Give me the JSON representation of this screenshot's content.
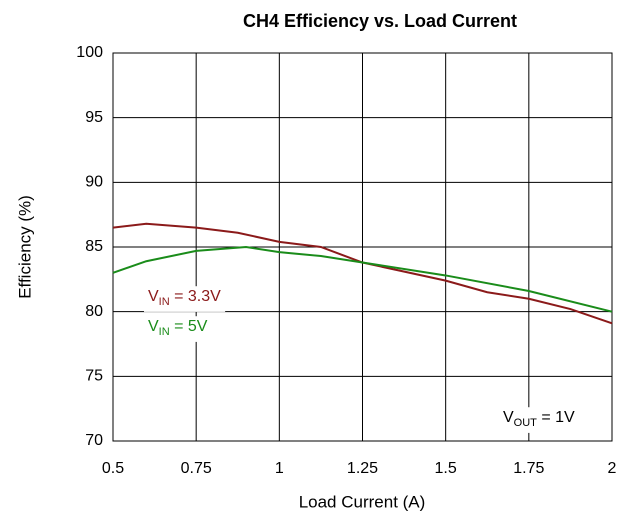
{
  "chart_data": {
    "type": "line",
    "title": "CH4 Efficiency vs. Load Current",
    "xlabel": "Load Current (A)",
    "ylabel": "Efficiency (%)",
    "xlim": [
      0.5,
      2
    ],
    "xticks": [
      0.5,
      0.75,
      1,
      1.25,
      1.5,
      1.75,
      2
    ],
    "ylim": [
      70,
      100
    ],
    "yticks": [
      70,
      75,
      80,
      85,
      90,
      95,
      100
    ],
    "grid": true,
    "series": [
      {
        "label": {
          "text": "V",
          "sub": "IN",
          "rest": " = 3.3V"
        },
        "color": "#8b1a1a",
        "x": [
          0.5,
          0.6,
          0.75,
          0.875,
          1.0,
          1.125,
          1.25,
          1.5,
          1.625,
          1.75,
          1.875,
          2.0
        ],
        "values": [
          86.5,
          86.8,
          86.5,
          86.1,
          85.4,
          85.0,
          83.8,
          82.4,
          81.5,
          81.0,
          80.2,
          79.1
        ]
      },
      {
        "label": {
          "text": "V",
          "sub": "IN",
          "rest": " = 5V"
        },
        "color": "#1a8c1a",
        "x": [
          0.5,
          0.6,
          0.75,
          0.9,
          1.0,
          1.125,
          1.25,
          1.5,
          1.75,
          2.0
        ],
        "values": [
          83.0,
          83.9,
          84.7,
          85.0,
          84.6,
          84.3,
          83.8,
          82.8,
          81.6,
          80.0
        ]
      }
    ],
    "annotations": [
      {
        "text": "V",
        "sub": "OUT",
        "rest": " = 1V"
      }
    ]
  }
}
